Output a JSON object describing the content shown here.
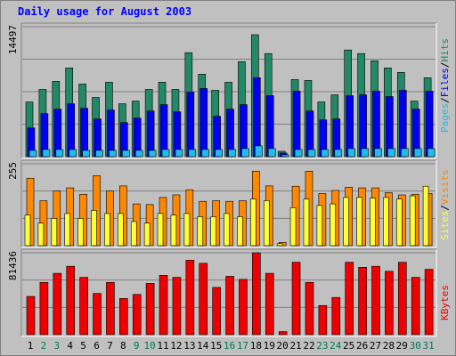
{
  "title": "Daily usage for August 2003",
  "colors": {
    "hits": "#228866",
    "files": "#0000ee",
    "pages": "#22bbee",
    "visits": "#ff8800",
    "sites": "#ffff33",
    "kbytes": "#ee0000",
    "weekday_label": "#000000",
    "weekend_label": "#007755",
    "separator": "#000000"
  },
  "labels": {
    "pages": "Pages",
    "files": "Files",
    "hits": "Hits",
    "sites": "Sites",
    "visits": "Visits",
    "kbytes": "KBytes",
    "sep": "/"
  },
  "chart_data": [
    {
      "type": "bar",
      "panel": "hits-files-pages",
      "ymax_label": "14497",
      "ylim": [
        0,
        14497
      ],
      "categories": [
        "1",
        "2",
        "3",
        "4",
        "5",
        "6",
        "7",
        "8",
        "9",
        "10",
        "11",
        "12",
        "13",
        "14",
        "15",
        "16",
        "17",
        "18",
        "19",
        "20",
        "21",
        "22",
        "23",
        "24",
        "25",
        "26",
        "27",
        "28",
        "29",
        "30",
        "31"
      ],
      "weekend_days": [
        "2",
        "3",
        "9",
        "10",
        "16",
        "17",
        "23",
        "24",
        "30",
        "31"
      ],
      "series": [
        {
          "name": "Hits",
          "values": [
            6100,
            7500,
            8400,
            9900,
            8100,
            6600,
            8300,
            5900,
            6200,
            7500,
            8300,
            7500,
            11600,
            9200,
            7400,
            8300,
            10600,
            13600,
            11500,
            600,
            8600,
            8500,
            6100,
            6900,
            11900,
            11500,
            10700,
            9900,
            9400,
            6200,
            8800
          ]
        },
        {
          "name": "Files",
          "values": [
            3200,
            4800,
            5300,
            5900,
            5400,
            4200,
            5200,
            3800,
            4300,
            5100,
            5800,
            5000,
            7200,
            7600,
            4500,
            5300,
            5800,
            8800,
            6800,
            400,
            7300,
            5100,
            4100,
            4200,
            6800,
            6900,
            7300,
            6700,
            7400,
            5300,
            7300
          ]
        },
        {
          "name": "Pages",
          "values": [
            700,
            800,
            800,
            800,
            700,
            700,
            700,
            700,
            700,
            700,
            800,
            800,
            800,
            800,
            800,
            800,
            900,
            1200,
            900,
            200,
            800,
            800,
            800,
            800,
            900,
            900,
            900,
            900,
            900,
            900,
            900
          ]
        }
      ]
    },
    {
      "type": "bar",
      "panel": "visits-sites",
      "ymax_label": "255",
      "ylim": [
        0,
        255
      ],
      "categories": [
        "1",
        "2",
        "3",
        "4",
        "5",
        "6",
        "7",
        "8",
        "9",
        "10",
        "11",
        "12",
        "13",
        "14",
        "15",
        "16",
        "17",
        "18",
        "19",
        "20",
        "21",
        "22",
        "23",
        "24",
        "25",
        "26",
        "27",
        "28",
        "29",
        "30",
        "31"
      ],
      "series": [
        {
          "name": "Visits",
          "values": [
            210,
            140,
            170,
            180,
            160,
            218,
            170,
            186,
            130,
            128,
            150,
            158,
            174,
            138,
            140,
            138,
            140,
            232,
            186,
            10,
            185,
            232,
            162,
            172,
            182,
            180,
            180,
            165,
            158,
            160,
            162
          ]
        },
        {
          "name": "Sites",
          "values": [
            95,
            70,
            85,
            100,
            85,
            110,
            100,
            100,
            75,
            70,
            100,
            95,
            100,
            90,
            90,
            100,
            90,
            145,
            140,
            6,
            118,
            145,
            125,
            130,
            150,
            150,
            148,
            150,
            145,
            155,
            185
          ]
        }
      ]
    },
    {
      "type": "bar",
      "panel": "kbytes",
      "ymax_label": "81436",
      "ylim": [
        0,
        81436
      ],
      "categories": [
        "1",
        "2",
        "3",
        "4",
        "5",
        "6",
        "7",
        "8",
        "9",
        "10",
        "11",
        "12",
        "13",
        "14",
        "15",
        "16",
        "17",
        "18",
        "19",
        "20",
        "21",
        "22",
        "23",
        "24",
        "25",
        "26",
        "27",
        "28",
        "29",
        "30",
        "31"
      ],
      "series": [
        {
          "name": "KBytes",
          "values": [
            38000,
            52000,
            61000,
            68000,
            57000,
            41000,
            52000,
            36000,
            40000,
            51000,
            59000,
            57000,
            74000,
            71000,
            47000,
            58000,
            55000,
            83000,
            61000,
            3000,
            72000,
            52000,
            29000,
            37000,
            72000,
            67000,
            68000,
            63000,
            72000,
            57000,
            65000
          ]
        }
      ]
    }
  ]
}
